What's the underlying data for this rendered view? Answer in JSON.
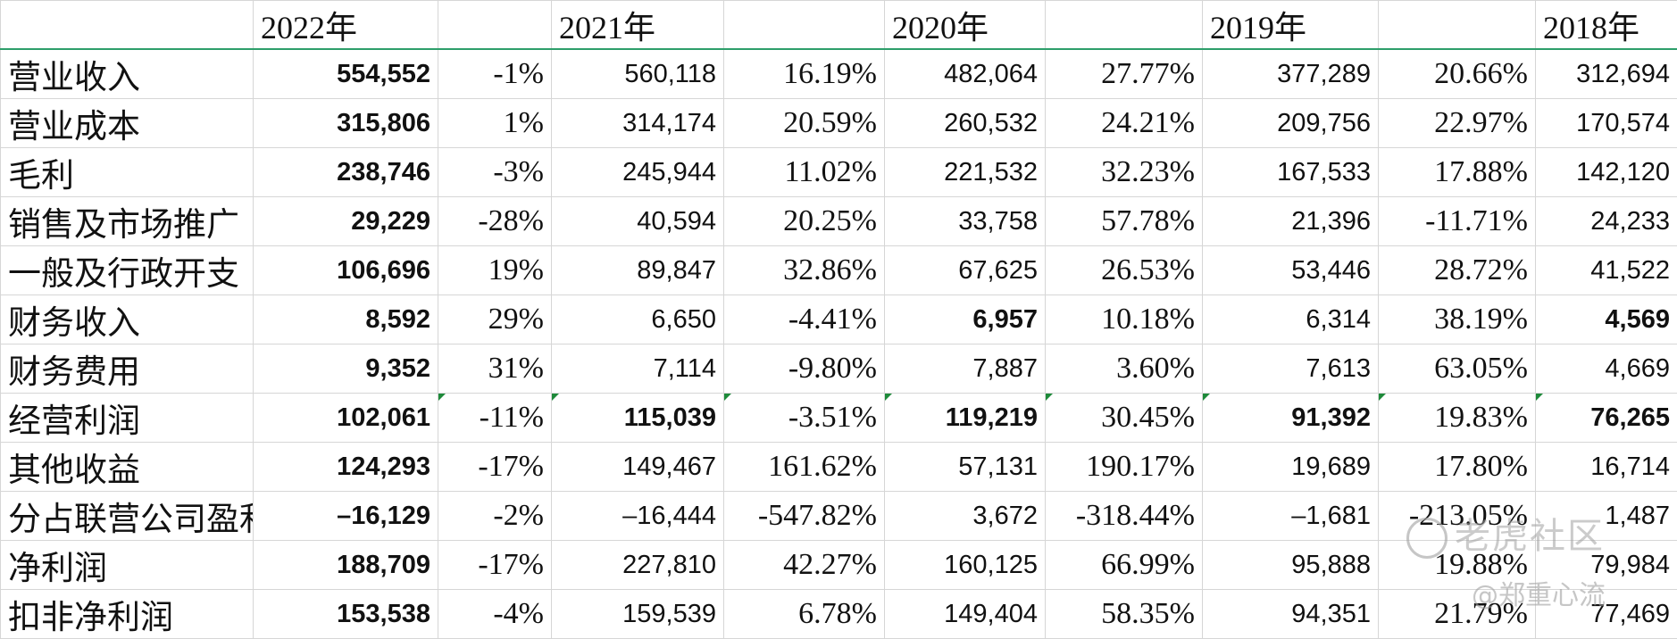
{
  "headers": [
    "",
    "2022年",
    "",
    "2021年",
    "",
    "2020年",
    "",
    "2019年",
    "",
    "2018年"
  ],
  "rows": [
    {
      "label": "营业收入",
      "cells": [
        "554,552",
        "-1%",
        "560,118",
        "16.19%",
        "482,064",
        "27.77%",
        "377,289",
        "20.66%",
        "312,694"
      ]
    },
    {
      "label": "营业成本",
      "cells": [
        "315,806",
        "1%",
        "314,174",
        "20.59%",
        "260,532",
        "24.21%",
        "209,756",
        "22.97%",
        "170,574"
      ]
    },
    {
      "label": "毛利",
      "cells": [
        "238,746",
        "-3%",
        "245,944",
        "11.02%",
        "221,532",
        "32.23%",
        "167,533",
        "17.88%",
        "142,120"
      ]
    },
    {
      "label": "销售及市场推广",
      "cells": [
        "29,229",
        "-28%",
        "40,594",
        "20.25%",
        "33,758",
        "57.78%",
        "21,396",
        "-11.71%",
        "24,233"
      ]
    },
    {
      "label": "一般及行政开支",
      "cells": [
        "106,696",
        "19%",
        "89,847",
        "32.86%",
        "67,625",
        "26.53%",
        "53,446",
        "28.72%",
        "41,522"
      ]
    },
    {
      "label": "财务收入",
      "cells": [
        "8,592",
        "29%",
        "6,650",
        "-4.41%",
        "6,957",
        "10.18%",
        "6,314",
        "38.19%",
        "4,569"
      ]
    },
    {
      "label": "财务费用",
      "cells": [
        "9,352",
        "31%",
        "7,114",
        "-9.80%",
        "7,887",
        "3.60%",
        "7,613",
        "63.05%",
        "4,669"
      ]
    },
    {
      "label": "经营利润",
      "cells": [
        "102,061",
        "-11%",
        "115,039",
        "-3.51%",
        "119,219",
        "30.45%",
        "91,392",
        "19.83%",
        "76,265"
      ]
    },
    {
      "label": "其他收益",
      "cells": [
        "124,293",
        "-17%",
        "149,467",
        "161.62%",
        "57,131",
        "190.17%",
        "19,689",
        "17.80%",
        "16,714"
      ]
    },
    {
      "label": "分占联营公司盈利",
      "cells": [
        "–16,129",
        "-2%",
        "–16,444",
        "-547.82%",
        "3,672",
        "-318.44%",
        "–1,681",
        "-213.05%",
        "1,487"
      ]
    },
    {
      "label": "净利润",
      "cells": [
        "188,709",
        "-17%",
        "227,810",
        "42.27%",
        "160,125",
        "66.99%",
        "95,888",
        "19.88%",
        "79,984"
      ]
    },
    {
      "label": "扣非净利润",
      "cells": [
        "153,538",
        "-4%",
        "159,539",
        "6.78%",
        "149,404",
        "58.35%",
        "94,351",
        "21.79%",
        "77,469"
      ]
    }
  ],
  "watermark": {
    "brand": "老虎社区",
    "author": "@郑重心流"
  }
}
